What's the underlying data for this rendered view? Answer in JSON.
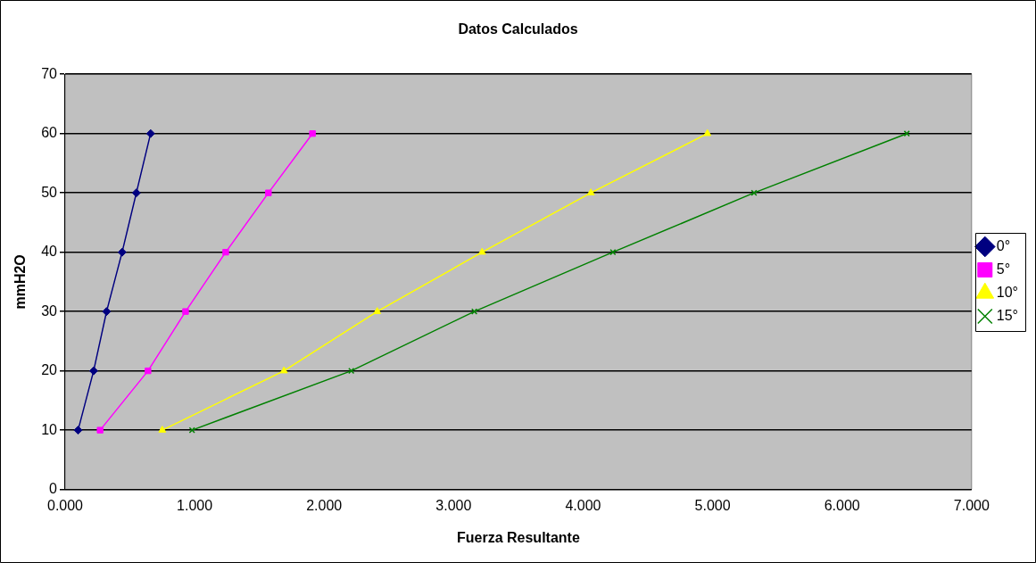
{
  "chart_data": {
    "type": "line",
    "title": "Datos Calculados",
    "xlabel": "Fuerza Resultante",
    "ylabel": "mmH2O",
    "xlim": [
      0,
      7
    ],
    "xticks": [
      {
        "value": 0,
        "label": "0.000"
      },
      {
        "value": 1,
        "label": "1.000"
      },
      {
        "value": 2,
        "label": "2.000"
      },
      {
        "value": 3,
        "label": "3.000"
      },
      {
        "value": 4,
        "label": "4.000"
      },
      {
        "value": 5,
        "label": "5.000"
      },
      {
        "value": 6,
        "label": "6.000"
      },
      {
        "value": 7,
        "label": "7.000"
      }
    ],
    "ylim": [
      0,
      70
    ],
    "yticks": [
      0,
      10,
      20,
      30,
      40,
      50,
      60,
      70
    ],
    "grid": "y",
    "legend": "right",
    "series": [
      {
        "name": "0°",
        "color": "#000080",
        "marker": "diamond",
        "x": [
          0.1,
          0.22,
          0.32,
          0.44,
          0.55,
          0.66
        ],
        "values": [
          10,
          20,
          30,
          40,
          50,
          60
        ]
      },
      {
        "name": "5°",
        "color": "#ff00ff",
        "marker": "square",
        "x": [
          0.27,
          0.64,
          0.93,
          1.24,
          1.57,
          1.91
        ],
        "values": [
          10,
          20,
          30,
          40,
          50,
          60
        ]
      },
      {
        "name": "10°",
        "color": "#ffff00",
        "marker": "triangle",
        "x": [
          0.75,
          1.69,
          2.41,
          3.22,
          4.06,
          4.96
        ],
        "values": [
          10,
          20,
          30,
          40,
          50,
          60
        ]
      },
      {
        "name": "15°",
        "color": "#008000",
        "marker": "cross",
        "x": [
          0.98,
          2.21,
          3.16,
          4.23,
          5.32,
          6.5
        ],
        "values": [
          10,
          20,
          30,
          40,
          50,
          60
        ]
      }
    ]
  }
}
